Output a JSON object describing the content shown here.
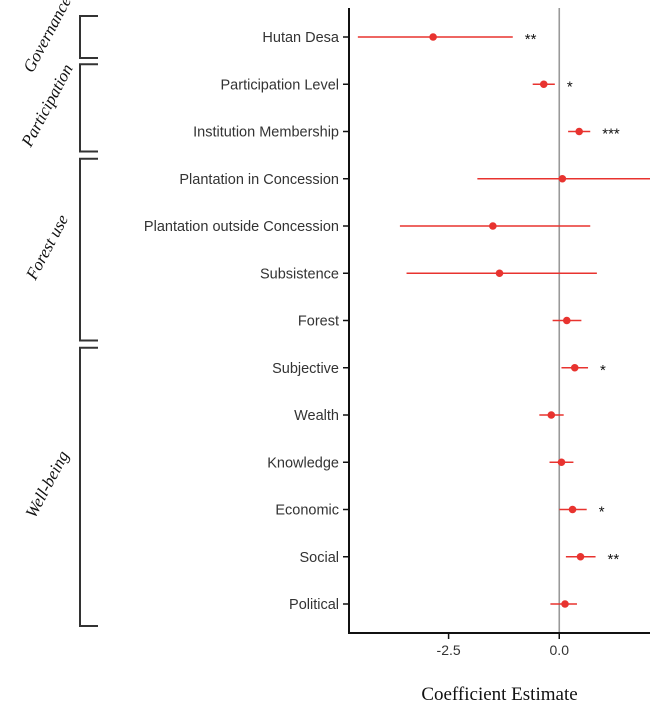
{
  "chart_data": {
    "type": "scatter",
    "subtype": "coefficient-plot",
    "xlabel": "Coefficient Estimate",
    "ylabel": "",
    "xlim": [
      -4.75,
      2.05
    ],
    "x_ticks": [
      -2.5,
      0.0
    ],
    "x_tick_labels": [
      "-2.5",
      "0.0"
    ],
    "reference_line": 0,
    "colors": {
      "point": "#e8332f",
      "ci": "#e8332f",
      "reference": "#999999",
      "axis": "#111111",
      "bracket": "#333333"
    },
    "categories": [
      "Hutan Desa",
      "Participation Level",
      "Institution Membership",
      "Plantation in Concession",
      "Plantation outside Concession",
      "Subsistence",
      "Forest",
      "Subjective",
      "Wealth",
      "Knowledge",
      "Economic",
      "Social",
      "Political"
    ],
    "estimates": [
      -2.85,
      -0.35,
      0.45,
      0.07,
      -1.5,
      -1.35,
      0.17,
      0.35,
      -0.18,
      0.05,
      0.3,
      0.48,
      0.13
    ],
    "ci_lower": [
      -4.55,
      -0.6,
      0.2,
      -1.85,
      -3.6,
      -3.45,
      -0.15,
      0.05,
      -0.45,
      -0.22,
      0.0,
      0.15,
      -0.2
    ],
    "ci_upper": [
      -1.05,
      -0.1,
      0.7,
      2.05,
      0.7,
      0.85,
      0.5,
      0.65,
      0.1,
      0.32,
      0.62,
      0.82,
      0.4
    ],
    "significance": [
      "**",
      "*",
      "***",
      "",
      "",
      "",
      "",
      "*",
      "",
      "",
      "*",
      "**",
      ""
    ],
    "groups": [
      {
        "label": "Governance",
        "from": "Hutan Desa",
        "to": "Hutan Desa"
      },
      {
        "label": "Participation",
        "from": "Participation Level",
        "to": "Institution Membership"
      },
      {
        "label": "Forest use",
        "from": "Plantation in Concession",
        "to": "Forest"
      },
      {
        "label": "Well-being",
        "from": "Subjective",
        "to": "Political"
      }
    ]
  }
}
